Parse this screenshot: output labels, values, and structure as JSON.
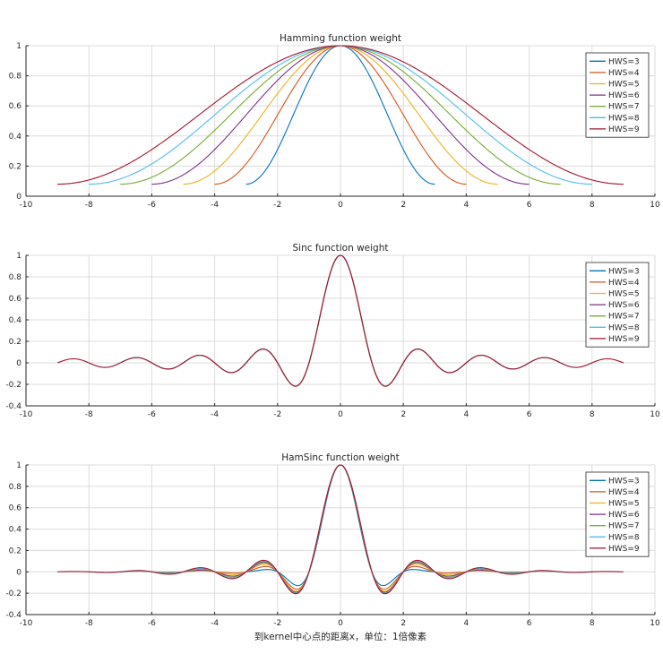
{
  "colors": {
    "HWS=3": "#0072bd",
    "HWS=4": "#d95319",
    "HWS=5": "#edb120",
    "HWS=6": "#7e2f8e",
    "HWS=7": "#77ac30",
    "HWS=8": "#4dbeee",
    "HWS=9": "#a2142f"
  },
  "chart_data": [
    {
      "type": "line",
      "title": "Hamming function weight",
      "xlabel": "",
      "ylabel": "",
      "xlim": [
        -10,
        10
      ],
      "ylim": [
        0,
        1
      ],
      "xticks": [
        -10,
        -8,
        -6,
        -4,
        -2,
        0,
        2,
        4,
        6,
        8,
        10
      ],
      "xtick_labels": [
        "-10",
        "-8",
        "-6",
        "-4",
        "-2",
        "0",
        "2",
        "4",
        "6",
        "8",
        "10"
      ],
      "yticks": [
        0,
        0.2,
        0.4,
        0.6,
        0.8,
        1
      ],
      "ytick_labels": [
        "0",
        "0.2",
        "0.4",
        "0.6",
        "0.8",
        "1"
      ],
      "grid": true,
      "legend_position": "top-right",
      "function": "hamming",
      "series": [
        {
          "name": "HWS=3",
          "hws": 3
        },
        {
          "name": "HWS=4",
          "hws": 4
        },
        {
          "name": "HWS=5",
          "hws": 5
        },
        {
          "name": "HWS=6",
          "hws": 6
        },
        {
          "name": "HWS=7",
          "hws": 7
        },
        {
          "name": "HWS=8",
          "hws": 8
        },
        {
          "name": "HWS=9",
          "hws": 9
        }
      ]
    },
    {
      "type": "line",
      "title": "Sinc function weight",
      "xlabel": "",
      "ylabel": "",
      "xlim": [
        -10,
        10
      ],
      "ylim": [
        -0.4,
        1
      ],
      "xticks": [
        -10,
        -8,
        -6,
        -4,
        -2,
        0,
        2,
        4,
        6,
        8,
        10
      ],
      "xtick_labels": [
        "-10",
        "-8",
        "-6",
        "-4",
        "-2",
        "0",
        "2",
        "4",
        "6",
        "8",
        "10"
      ],
      "yticks": [
        -0.4,
        -0.2,
        0,
        0.2,
        0.4,
        0.6,
        0.8,
        1
      ],
      "ytick_labels": [
        "-0.4",
        "-0.2",
        "0",
        "0.2",
        "0.4",
        "0.6",
        "0.8",
        "1"
      ],
      "grid": true,
      "legend_position": "top-right",
      "function": "sinc",
      "series": [
        {
          "name": "HWS=3",
          "hws": 3
        },
        {
          "name": "HWS=4",
          "hws": 4
        },
        {
          "name": "HWS=5",
          "hws": 5
        },
        {
          "name": "HWS=6",
          "hws": 6
        },
        {
          "name": "HWS=7",
          "hws": 7
        },
        {
          "name": "HWS=8",
          "hws": 8
        },
        {
          "name": "HWS=9",
          "hws": 9
        }
      ]
    },
    {
      "type": "line",
      "title": "HamSinc function weight",
      "xlabel": "到kernel中心点的距离x，单位：1倍像素",
      "ylabel": "",
      "xlim": [
        -10,
        10
      ],
      "ylim": [
        -0.4,
        1
      ],
      "xticks": [
        -10,
        -8,
        -6,
        -4,
        -2,
        0,
        2,
        4,
        6,
        8,
        10
      ],
      "xtick_labels": [
        "-10",
        "-8",
        "-6",
        "-4",
        "-2",
        "0",
        "2",
        "4",
        "6",
        "8",
        "10"
      ],
      "yticks": [
        -0.4,
        -0.2,
        0,
        0.2,
        0.4,
        0.6,
        0.8,
        1
      ],
      "ytick_labels": [
        "-0.4",
        "-0.2",
        "0",
        "0.2",
        "0.4",
        "0.6",
        "0.8",
        "1"
      ],
      "grid": true,
      "legend_position": "top-right",
      "function": "hamsinc",
      "series": [
        {
          "name": "HWS=3",
          "hws": 3
        },
        {
          "name": "HWS=4",
          "hws": 4
        },
        {
          "name": "HWS=5",
          "hws": 5
        },
        {
          "name": "HWS=6",
          "hws": 6
        },
        {
          "name": "HWS=7",
          "hws": 7
        },
        {
          "name": "HWS=8",
          "hws": 8
        },
        {
          "name": "HWS=9",
          "hws": 9
        }
      ]
    }
  ]
}
